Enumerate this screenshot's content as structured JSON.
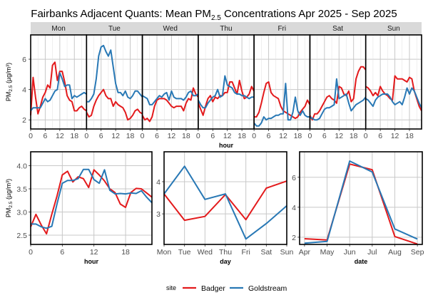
{
  "chart_data": [
    {
      "type": "line",
      "panel": "hourly-by-weekday",
      "title": "Fairbanks Adjacent Quants: Mean PM2.5 Concentrations Apr 2025 - Sep 2025",
      "title_parts": {
        "pre": "Fairbanks Adjacent Quants: Mean PM",
        "sub": "2.5",
        "post": " Concentrations Apr 2025 - Sep 2025"
      },
      "xlabel": "hour",
      "ylabel_parts": {
        "pre": "PM",
        "sub": "2.5",
        "post": " (µg/m³)"
      },
      "facets": [
        "Mon",
        "Tue",
        "Wed",
        "Thu",
        "Fri",
        "Sat",
        "Sun"
      ],
      "x_ticks": [
        0,
        6,
        12,
        18
      ],
      "x_range": [
        0,
        23
      ],
      "y_ticks": [
        2,
        4,
        6
      ],
      "y_range": [
        1.4,
        7.6
      ],
      "grid": true,
      "series": [
        {
          "name": "Badger",
          "color": "#e31a1c",
          "values": {
            "Mon": [
              2.3,
              4.8,
              3.5,
              2.4,
              2.9,
              3.5,
              3.8,
              4.3,
              4.1,
              5.6,
              5.8,
              4.6,
              5.2,
              5.2,
              4.5,
              3.6,
              3.3,
              3.2,
              2.6,
              2.6,
              2.8,
              2.9,
              2.7,
              2.6
            ],
            "Tue": [
              2.5,
              2.2,
              2.3,
              2.9,
              3.3,
              3.6,
              3.8,
              4.0,
              3.6,
              3.4,
              3.4,
              2.9,
              3.2,
              3.0,
              2.9,
              2.8,
              2.5,
              2.0,
              2.1,
              2.3,
              2.6,
              2.7,
              2.5,
              2.4
            ],
            "Wed": [
              2.3,
              2.0,
              2.1,
              1.9,
              2.2,
              2.9,
              3.3,
              3.4,
              3.4,
              3.4,
              3.3,
              3.1,
              2.9,
              2.8,
              2.9,
              2.9,
              2.9,
              2.6,
              3.1,
              3.4,
              3.3,
              4.1,
              3.7,
              3.5
            ],
            "Thu": [
              3.1,
              2.7,
              2.3,
              2.9,
              3.4,
              3.6,
              3.2,
              3.5,
              3.4,
              3.6,
              3.6,
              3.8,
              3.8,
              4.5,
              4.5,
              4.1,
              3.7,
              4.6,
              3.9,
              3.4,
              3.5,
              3.7,
              4.2,
              3.9
            ],
            "Fri": [
              2.2,
              2.2,
              2.5,
              3.1,
              3.8,
              4.4,
              4.5,
              3.8,
              3.6,
              3.5,
              3.4,
              2.9,
              2.6,
              2.5,
              2.4,
              2.3,
              2.2,
              2.1,
              2.2,
              2.5,
              2.7,
              2.9,
              3.3,
              3.0
            ],
            "Sat": [
              2.3,
              2.0,
              2.4,
              2.4,
              2.6,
              2.9,
              3.2,
              3.5,
              3.6,
              3.4,
              3.3,
              3.1,
              4.2,
              4.1,
              3.7,
              3.6,
              3.9,
              3.2,
              3.4,
              4.7,
              5.2,
              5.5,
              5.5,
              5.3
            ],
            "Sun": [
              4.2,
              4.1,
              3.9,
              3.6,
              3.8,
              3.6,
              4.2,
              3.9,
              3.7,
              3.6,
              3.4,
              3.3,
              4.9,
              4.7,
              4.7,
              4.7,
              4.6,
              4.5,
              4.8,
              4.7,
              3.9,
              3.4,
              2.9,
              2.6
            ]
          }
        },
        {
          "name": "Goldstream",
          "color": "#2878b5",
          "values": {
            "Mon": [
              2.6,
              2.8,
              2.8,
              2.8,
              2.8,
              3.1,
              3.4,
              3.2,
              3.3,
              3.6,
              3.9,
              4.0,
              5.1,
              4.7,
              4.2,
              4.3,
              4.3,
              3.4,
              3.6,
              3.5,
              3.6,
              3.7,
              3.8,
              3.7
            ],
            "Tue": [
              3.2,
              3.2,
              3.4,
              3.7,
              4.7,
              6.2,
              6.8,
              6.9,
              6.5,
              6.2,
              6.6,
              5.5,
              4.4,
              3.8,
              3.8,
              3.6,
              3.9,
              3.5,
              3.4,
              3.6,
              3.9,
              3.9,
              3.7,
              3.5
            ],
            "Wed": [
              3.6,
              3.5,
              3.4,
              3.0,
              3.0,
              3.2,
              3.4,
              3.6,
              3.5,
              3.7,
              3.8,
              3.3,
              3.9,
              3.5,
              3.4,
              3.4,
              3.4,
              3.3,
              3.5,
              3.8,
              3.9,
              3.6,
              3.6,
              3.7
            ],
            "Thu": [
              3.3,
              3.0,
              2.8,
              2.8,
              3.1,
              3.3,
              3.5,
              3.6,
              4.0,
              3.5,
              3.6,
              4.9,
              4.3,
              4.2,
              4.1,
              3.8,
              3.7,
              3.7,
              3.6,
              3.6,
              3.5,
              3.4,
              3.5,
              3.5
            ],
            "Fri": [
              1.8,
              1.6,
              1.6,
              1.8,
              2.2,
              2.0,
              2.1,
              2.1,
              2.2,
              2.3,
              2.3,
              2.4,
              2.4,
              4.4,
              2.0,
              2.0,
              2.5,
              3.5,
              2.6,
              2.3,
              2.6,
              2.3,
              2.2,
              2.2
            ],
            "Sat": [
              2.2,
              2.1,
              2.0,
              2.0,
              2.1,
              2.4,
              2.7,
              2.8,
              2.8,
              2.9,
              3.0,
              4.7,
              3.4,
              3.5,
              3.6,
              3.7,
              3.1,
              2.6,
              2.8,
              3.0,
              3.1,
              3.2,
              3.3,
              3.5
            ],
            "Sun": [
              3.4,
              3.3,
              3.1,
              2.9,
              3.3,
              3.5,
              3.6,
              3.7,
              3.7,
              3.7,
              3.5,
              3.2,
              3.0,
              3.1,
              3.2,
              3.0,
              3.5,
              4.1,
              3.7,
              4.1,
              3.9,
              3.5,
              3.1,
              2.8
            ]
          }
        }
      ]
    },
    {
      "type": "line",
      "panel": "hour",
      "xlabel": "hour",
      "ylabel_parts": {
        "pre": "PM",
        "sub": "2.5",
        "post": " (µg/m³)"
      },
      "x_ticks": [
        0,
        6,
        12,
        18
      ],
      "x_range": [
        0,
        23
      ],
      "y_ticks": [
        2.5,
        3.0,
        3.5,
        4.0
      ],
      "y_tick_labels": [
        "2.5",
        "3.0",
        "3.5",
        "4.0"
      ],
      "y_range": [
        2.3,
        4.3
      ],
      "grid": true,
      "series": [
        {
          "name": "Badger",
          "color": "#e31a1c",
          "values": [
            2.68,
            2.95,
            2.72,
            2.53,
            2.95,
            3.35,
            3.8,
            3.88,
            3.65,
            3.76,
            3.72,
            3.53,
            3.91,
            3.8,
            3.67,
            3.5,
            3.42,
            3.17,
            3.1,
            3.42,
            3.51,
            3.5,
            3.41,
            3.32
          ]
        },
        {
          "name": "Goldstream",
          "color": "#2878b5",
          "values": [
            2.74,
            2.74,
            2.68,
            2.65,
            2.69,
            3.18,
            3.62,
            3.68,
            3.68,
            3.72,
            3.92,
            3.92,
            3.7,
            3.62,
            3.91,
            3.47,
            3.39,
            3.4,
            3.39,
            3.41,
            3.4,
            3.46,
            3.32,
            3.2
          ]
        }
      ]
    },
    {
      "type": "line",
      "panel": "day",
      "xlabel": "day",
      "categories": [
        "Mon",
        "Tue",
        "Wed",
        "Thu",
        "Fri",
        "Sat",
        "Sun"
      ],
      "y_ticks": [
        3,
        4
      ],
      "y_range": [
        2.05,
        4.93
      ],
      "grid": true,
      "series": [
        {
          "name": "Badger",
          "color": "#e31a1c",
          "values": [
            3.62,
            2.8,
            2.92,
            3.6,
            2.82,
            3.8,
            4.02
          ]
        },
        {
          "name": "Goldstream",
          "color": "#2878b5",
          "values": [
            3.62,
            4.48,
            3.45,
            3.62,
            2.22,
            2.7,
            3.25
          ]
        }
      ]
    },
    {
      "type": "line",
      "panel": "date",
      "xlabel": "date",
      "categories": [
        "Apr",
        "May",
        "Jun",
        "Jul",
        "Aug",
        "Sep"
      ],
      "y_ticks": [
        2,
        4,
        6
      ],
      "y_range": [
        1.52,
        7.7
      ],
      "grid": true,
      "series": [
        {
          "name": "Badger",
          "color": "#e31a1c",
          "values": [
            1.9,
            1.82,
            6.88,
            6.5,
            2.05,
            1.55
          ]
        },
        {
          "name": "Goldstream",
          "color": "#2878b5",
          "values": [
            1.6,
            1.72,
            7.08,
            6.35,
            2.55,
            1.88
          ]
        }
      ]
    }
  ],
  "legend": {
    "title": "site",
    "position": "bottom",
    "items": [
      {
        "label": "Badger",
        "color": "#e31a1c"
      },
      {
        "label": "Goldstream",
        "color": "#2878b5"
      }
    ]
  }
}
